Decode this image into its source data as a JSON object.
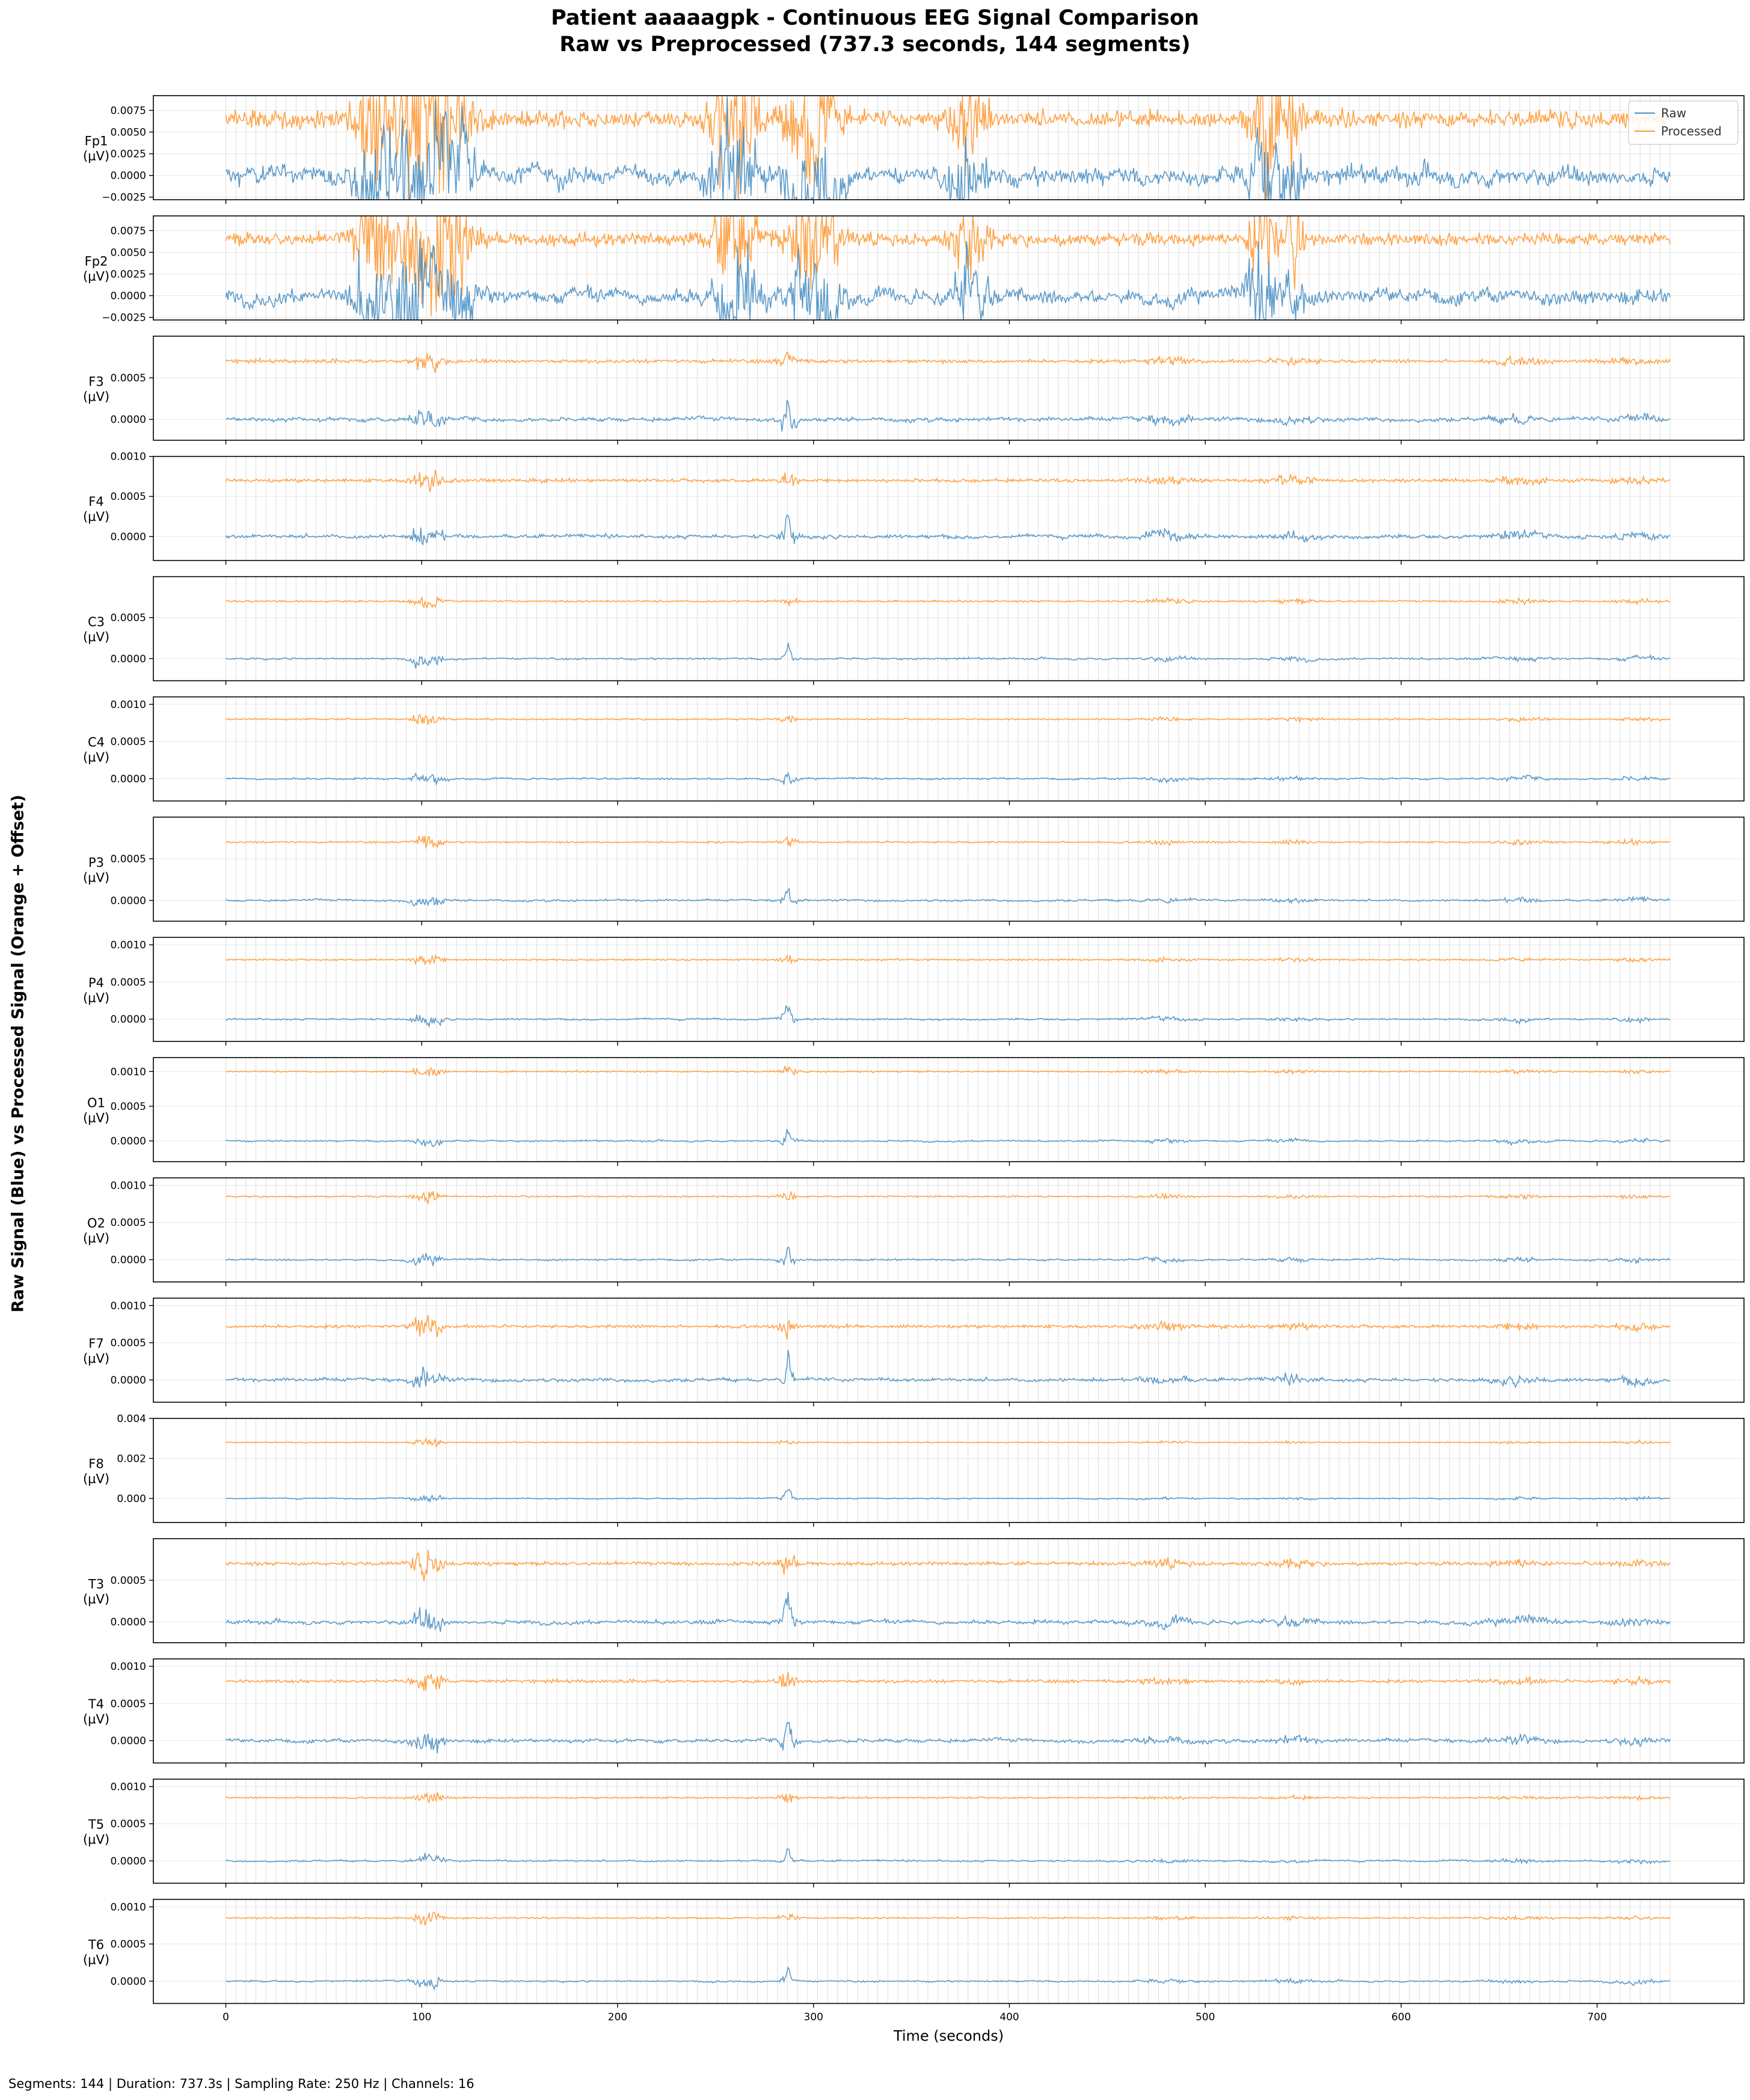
{
  "title_line1": "Patient aaaaagpk - Continuous EEG Signal Comparison",
  "title_line2": "Raw vs Preprocessed (737.3 seconds, 144 segments)",
  "ylabel": "Raw Signal (Blue) vs Processed Signal (Orange + Offset)",
  "footer": "Segments: 144 | Duration: 737.3s | Sampling Rate: 250 Hz | Channels: 16",
  "colors": {
    "raw": "#4a90c4",
    "processed": "#ff9933",
    "grid": "#dddddd"
  },
  "chart_data": {
    "type": "line",
    "xlabel": "Time (seconds)",
    "xlim": [
      -37,
      775
    ],
    "x_ticks": [
      0,
      100,
      200,
      300,
      400,
      500,
      600,
      700
    ],
    "duration_s": 737.3,
    "segments": 144,
    "legend": {
      "placement": "top-right",
      "entries": [
        "Raw",
        "Processed"
      ]
    },
    "unit_label": "(µV)",
    "channels": [
      {
        "name": "Fp1",
        "ylim": [
          -0.0028,
          0.0092
        ],
        "offset": 0.0065,
        "amp": 0.0018,
        "ticks": [
          -0.0025,
          0.0,
          0.0025,
          0.005,
          0.0075
        ],
        "tick_labels": [
          "−0.0025",
          "0.0000",
          "0.0025",
          "0.0050",
          "0.0075"
        ]
      },
      {
        "name": "Fp2",
        "ylim": [
          -0.0028,
          0.0092
        ],
        "offset": 0.0065,
        "amp": 0.0014,
        "ticks": [
          -0.0025,
          0.0,
          0.0025,
          0.005,
          0.0075
        ],
        "tick_labels": [
          "−0.0025",
          "0.0000",
          "0.0025",
          "0.0050",
          "0.0075"
        ]
      },
      {
        "name": "F3",
        "ylim": [
          -0.00025,
          0.001
        ],
        "offset": 0.0007,
        "amp": 4e-05,
        "ticks": [
          0.0,
          0.0005
        ],
        "tick_labels": [
          "0.0000",
          "0.0005"
        ]
      },
      {
        "name": "F4",
        "ylim": [
          -0.0003,
          0.001
        ],
        "offset": 0.0007,
        "amp": 4e-05,
        "ticks": [
          0.0,
          0.0005,
          0.001
        ],
        "tick_labels": [
          "0.0000",
          "0.0005",
          "0.0010"
        ]
      },
      {
        "name": "C3",
        "ylim": [
          -0.00027,
          0.001
        ],
        "offset": 0.0007,
        "amp": 2e-05,
        "ticks": [
          0.0,
          0.0005
        ],
        "tick_labels": [
          "0.0000",
          "0.0005"
        ]
      },
      {
        "name": "C4",
        "ylim": [
          -0.0003,
          0.0011
        ],
        "offset": 0.0008,
        "amp": 2e-05,
        "ticks": [
          0.0,
          0.0005,
          0.001
        ],
        "tick_labels": [
          "0.0000",
          "0.0005",
          "0.0010"
        ]
      },
      {
        "name": "P3",
        "ylim": [
          -0.00025,
          0.001
        ],
        "offset": 0.0007,
        "amp": 2e-05,
        "ticks": [
          0.0,
          0.0005
        ],
        "tick_labels": [
          "0.0000",
          "0.0005"
        ]
      },
      {
        "name": "P4",
        "ylim": [
          -0.0003,
          0.0011
        ],
        "offset": 0.0008,
        "amp": 2e-05,
        "ticks": [
          0.0,
          0.0005,
          0.001
        ],
        "tick_labels": [
          "0.0000",
          "0.0005",
          "0.0010"
        ]
      },
      {
        "name": "O1",
        "ylim": [
          -0.0003,
          0.0012
        ],
        "offset": 0.001,
        "amp": 2e-05,
        "ticks": [
          0.0,
          0.0005,
          0.001
        ],
        "tick_labels": [
          "0.0000",
          "0.0005",
          "0.0010"
        ]
      },
      {
        "name": "O2",
        "ylim": [
          -0.0003,
          0.0011
        ],
        "offset": 0.00085,
        "amp": 2e-05,
        "ticks": [
          0.0,
          0.0005,
          0.001
        ],
        "tick_labels": [
          "0.0000",
          "0.0005",
          "0.0010"
        ]
      },
      {
        "name": "F7",
        "ylim": [
          -0.0003,
          0.0011
        ],
        "offset": 0.00072,
        "amp": 4e-05,
        "ticks": [
          0.0,
          0.0005,
          0.001
        ],
        "tick_labels": [
          "0.0000",
          "0.0005",
          "0.0010"
        ]
      },
      {
        "name": "F8",
        "ylim": [
          -0.0012,
          0.004
        ],
        "offset": 0.0028,
        "amp": 5e-05,
        "ticks": [
          0.0,
          0.002,
          0.004
        ],
        "tick_labels": [
          "0.000",
          "0.002",
          "0.004"
        ]
      },
      {
        "name": "T3",
        "ylim": [
          -0.00025,
          0.001
        ],
        "offset": 0.0007,
        "amp": 4e-05,
        "ticks": [
          0.0,
          0.0005
        ],
        "tick_labels": [
          "0.0000",
          "0.0005"
        ]
      },
      {
        "name": "T4",
        "ylim": [
          -0.0003,
          0.0011
        ],
        "offset": 0.0008,
        "amp": 4e-05,
        "ticks": [
          0.0,
          0.0005,
          0.001
        ],
        "tick_labels": [
          "0.0000",
          "0.0005",
          "0.0010"
        ]
      },
      {
        "name": "T5",
        "ylim": [
          -0.0003,
          0.0011
        ],
        "offset": 0.00085,
        "amp": 2e-05,
        "ticks": [
          0.0,
          0.0005,
          0.001
        ],
        "tick_labels": [
          "0.0000",
          "0.0005",
          "0.0010"
        ]
      },
      {
        "name": "T6",
        "ylim": [
          -0.0003,
          0.0011
        ],
        "offset": 0.00085,
        "amp": 2e-05,
        "ticks": [
          0.0,
          0.0005,
          0.001
        ],
        "tick_labels": [
          "0.0000",
          "0.0005",
          "0.0010"
        ]
      }
    ]
  }
}
